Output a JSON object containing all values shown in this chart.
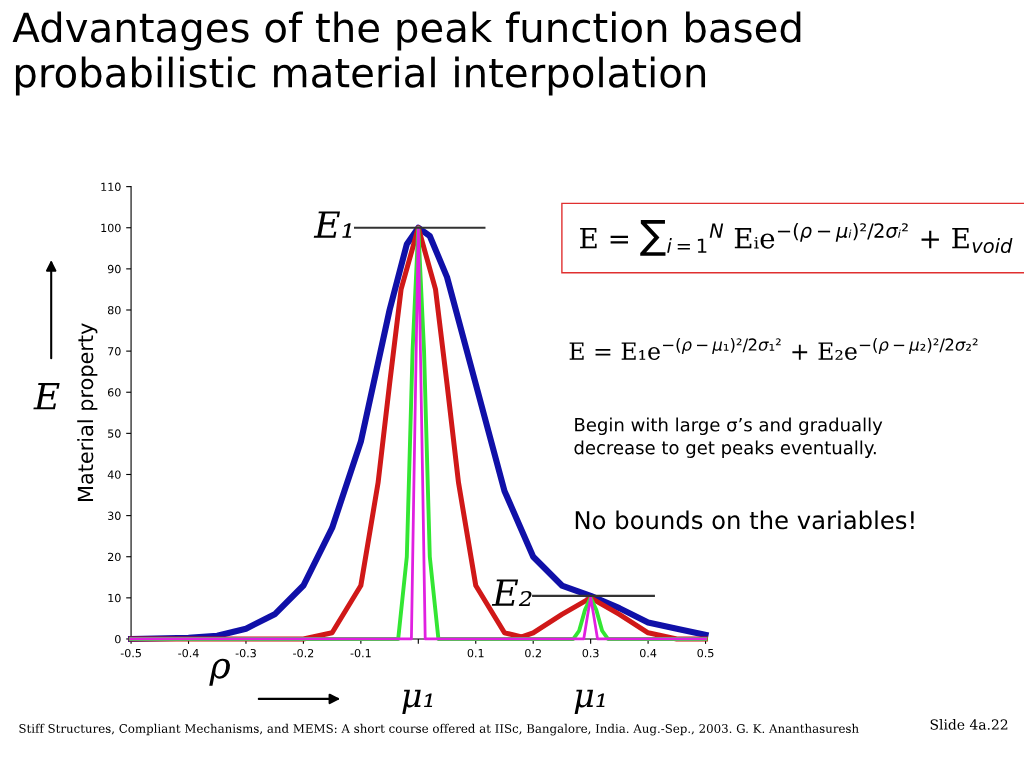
{
  "chart_data": {
    "type": "line",
    "title": "Advantages of the peak function based probabilistic material interpolation",
    "ylabel": "Material property",
    "xlim": [
      -0.5,
      0.5
    ],
    "ylim": [
      0,
      110
    ],
    "xticks": [
      -0.5,
      -0.4,
      -0.3,
      -0.2,
      -0.1,
      {
        "value": 0,
        "label": null
      },
      0.1,
      0.2,
      0.3,
      0.4,
      0.5
    ],
    "yticks": [
      0,
      10,
      20,
      30,
      40,
      50,
      60,
      70,
      80,
      90,
      100,
      110
    ],
    "grid": false,
    "series": [
      {
        "color": "#1010a8",
        "x": [
          -0.5,
          -0.4,
          -0.35,
          -0.3,
          -0.25,
          -0.2,
          -0.15,
          -0.1,
          -0.05,
          -0.02,
          0,
          0.02,
          0.05,
          0.1,
          0.15,
          0.2,
          0.25,
          0.3,
          0.35,
          0.4,
          0.45,
          0.5
        ],
        "values": [
          0,
          0.3,
          0.8,
          2.5,
          6,
          13,
          27,
          48,
          80,
          96,
          100,
          98,
          88,
          62,
          36,
          20,
          13,
          10.5,
          7.5,
          4,
          2.5,
          1
        ]
      },
      {
        "color": "#d01818",
        "x": [
          -0.5,
          -0.2,
          -0.15,
          -0.1,
          -0.07,
          -0.05,
          -0.03,
          0,
          0.03,
          0.05,
          0.07,
          0.1,
          0.15,
          0.18,
          0.2,
          0.25,
          0.3,
          0.35,
          0.4,
          0.45,
          0.5
        ],
        "values": [
          0,
          0,
          1.5,
          13,
          38,
          62,
          85,
          100,
          85,
          62,
          38,
          13,
          1.5,
          0.5,
          1.5,
          6,
          10,
          6,
          1.5,
          0,
          0
        ]
      },
      {
        "color": "#33e633",
        "x": [
          -0.5,
          -0.035,
          -0.02,
          -0.01,
          0,
          0.01,
          0.02,
          0.035,
          0.27,
          0.28,
          0.29,
          0.3,
          0.31,
          0.32,
          0.33,
          0.5
        ],
        "values": [
          0,
          0,
          20,
          70,
          100,
          70,
          20,
          0,
          0,
          2,
          7,
          10,
          7,
          2,
          0,
          0
        ]
      },
      {
        "color": "#e020e0",
        "x": [
          -0.5,
          -0.012,
          -0.008,
          0,
          0.008,
          0.012,
          0.288,
          0.295,
          0.3,
          0.305,
          0.312,
          0.5
        ],
        "values": [
          0,
          0,
          35,
          100,
          35,
          0,
          0,
          6,
          10,
          6,
          0,
          0
        ]
      },
      {
        "color": "#333333",
        "x": [
          -0.11,
          0.115
        ],
        "values": [
          100,
          100
        ]
      },
      {
        "color": "#333333",
        "x": [
          0.2,
          0.41
        ],
        "values": [
          10.5,
          10.5
        ]
      }
    ],
    "annotations": [
      {
        "text": "E₁",
        "x": -0.11,
        "y": 100
      },
      {
        "text": "E₂",
        "x": 0.2,
        "y": 10.5
      },
      "μ₁",
      "μ₁",
      "E",
      "ρ",
      "E = ∑$_{i=1}$$^{N}$ Eᵢe$^{−(ρ−μᵢ)²/2σᵢ²}$ + E$_{void}$",
      "E = E₁e$^{−(ρ−μ₁)²/2σ₁²}$ + E₂e$^{−(ρ−μ₂)²/2σ₂²}$",
      "Begin with large σ’s and gradually\ndecrease to get peaks eventually.",
      "No bounds on the variables!",
      "Stiff Structures, Compliant Mechanisms, and MEMS: A short course offered at IISc, Bangalore, India. Aug.-Sep., 2003. G. K. Ananthasuresh",
      "Slide 4a.22"
    ]
  }
}
